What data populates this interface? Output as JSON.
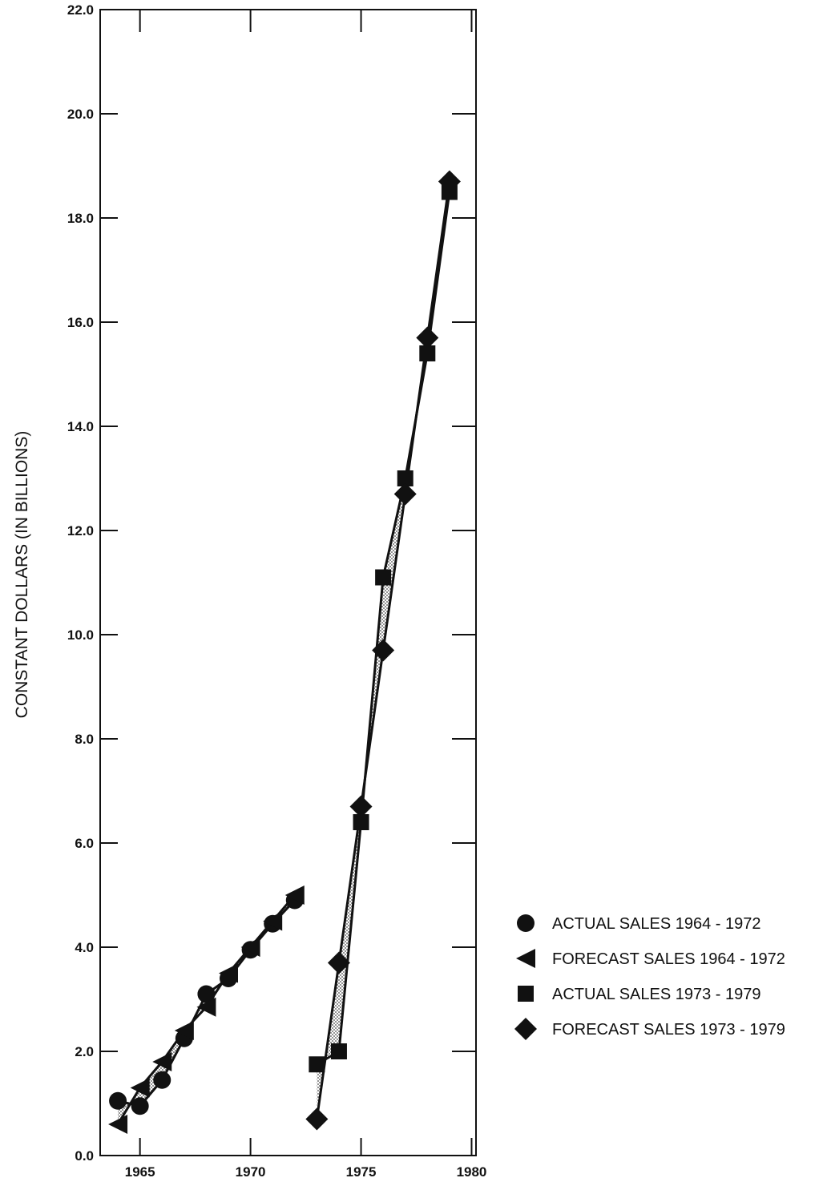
{
  "chart_data": {
    "type": "line",
    "title": "",
    "xlabel": "",
    "ylabel": "CONSTANT DOLLARS (IN BILLIONS)",
    "xlim": [
      1963.2,
      1980.2
    ],
    "ylim": [
      0,
      22
    ],
    "x_ticks": [
      "1965",
      "1970",
      "1975",
      "1980"
    ],
    "y_ticks": [
      "0.0",
      "2.0",
      "4.0",
      "6.0",
      "8.0",
      "10.0",
      "12.0",
      "14.0",
      "16.0",
      "18.0",
      "20.0",
      "22.0"
    ],
    "grid": false,
    "legend_position": "right",
    "series": [
      {
        "name": "ACTUAL SALES 1964 - 1972",
        "marker": "circle",
        "x": [
          1964,
          1965,
          1966,
          1967,
          1968,
          1969,
          1970,
          1971,
          1972
        ],
        "y": [
          1.05,
          0.95,
          1.45,
          2.25,
          3.1,
          3.4,
          3.95,
          4.45,
          4.9
        ]
      },
      {
        "name": "FORECAST SALES 1964 - 1972",
        "marker": "triangle-left",
        "x": [
          1964,
          1965,
          1966,
          1967,
          1968,
          1969,
          1970,
          1971,
          1972
        ],
        "y": [
          0.6,
          1.3,
          1.8,
          2.4,
          2.85,
          3.5,
          4.0,
          4.5,
          5.0
        ]
      },
      {
        "name": "ACTUAL SALES 1973 - 1979",
        "marker": "square",
        "x": [
          1973,
          1974,
          1975,
          1976,
          1977,
          1978,
          1979
        ],
        "y": [
          1.75,
          2.0,
          6.4,
          11.1,
          13.0,
          15.4,
          18.5
        ]
      },
      {
        "name": "FORECAST SALES 1973 - 1979",
        "marker": "diamond",
        "x": [
          1973,
          1974,
          1975,
          1976,
          1977,
          1978,
          1979
        ],
        "y": [
          0.7,
          3.7,
          6.7,
          9.7,
          12.7,
          15.7,
          18.7
        ]
      }
    ],
    "colors": {
      "ink": "#111111",
      "band": "#9a9a9a",
      "background": "#ffffff"
    }
  }
}
